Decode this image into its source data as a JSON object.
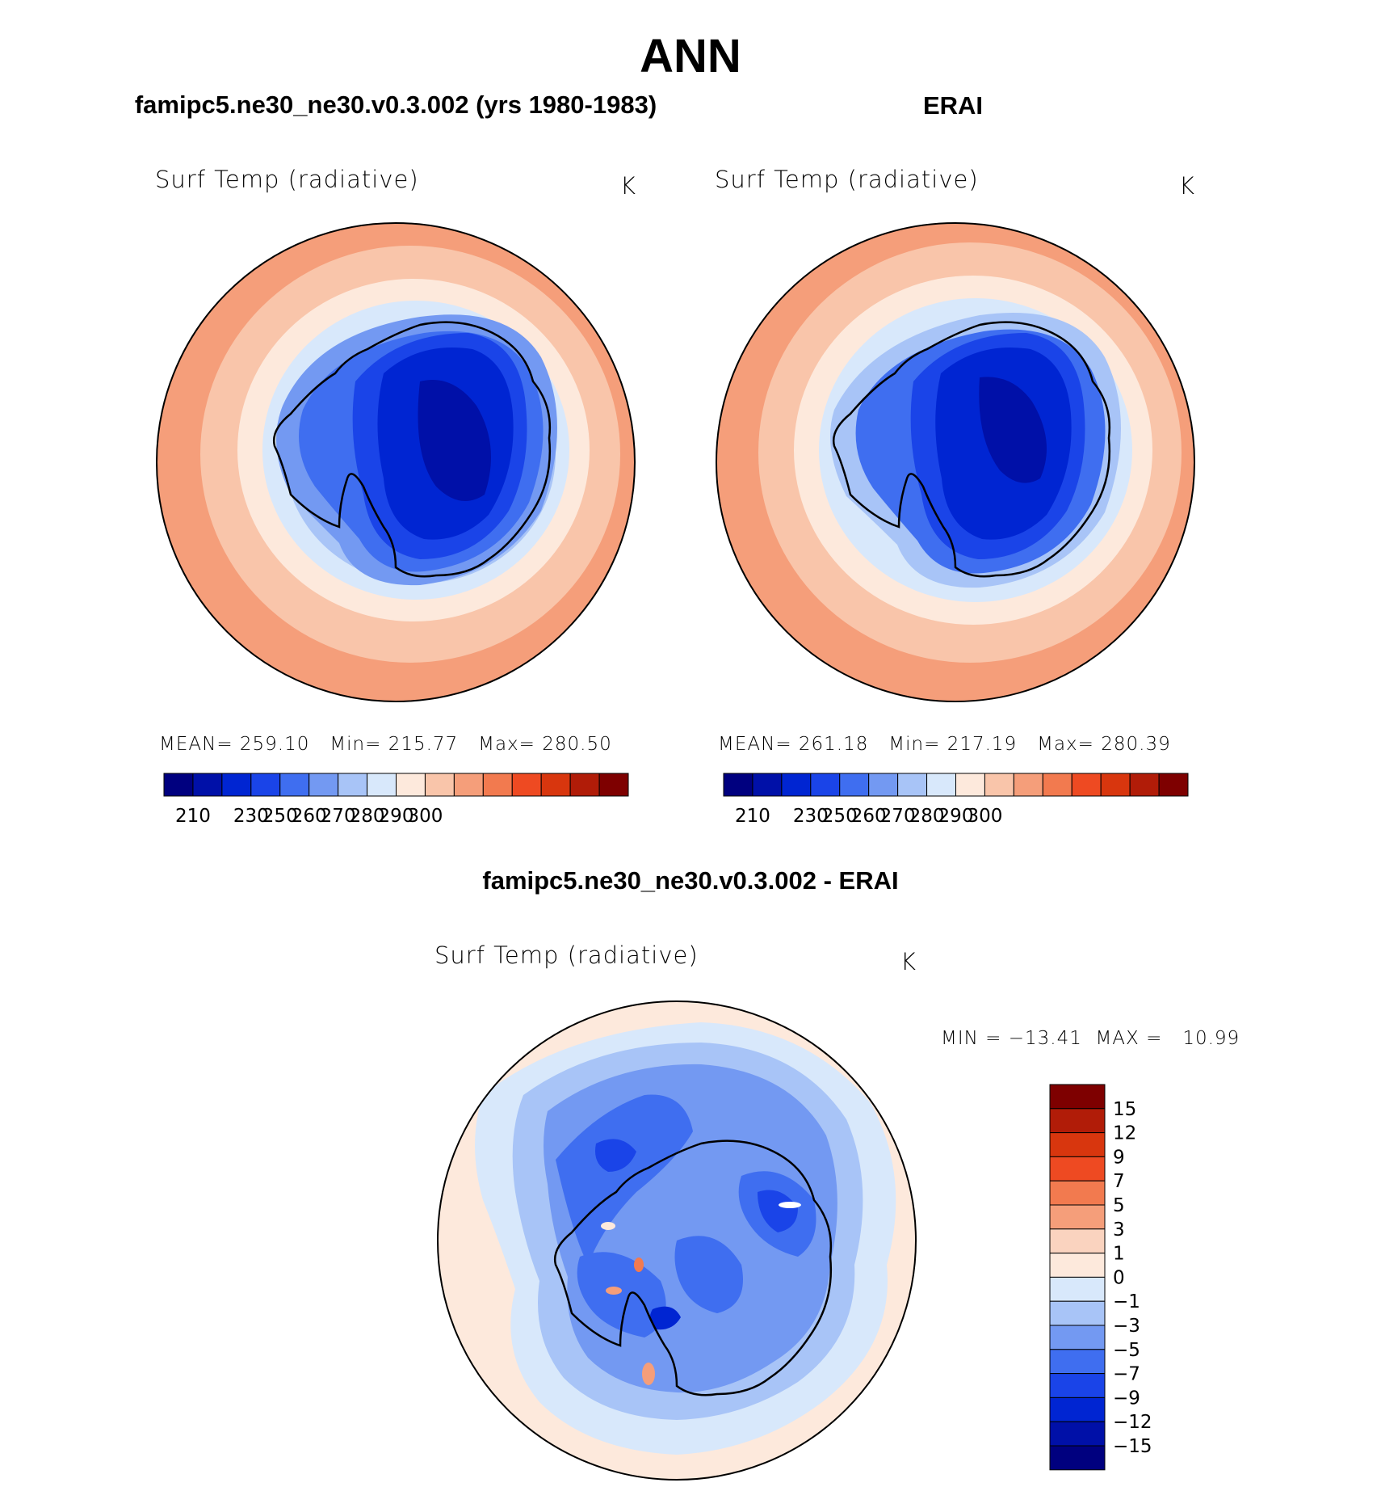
{
  "title": "ANN",
  "panels": {
    "model": {
      "heading": "famipc5.ne30_ne30.v0.3.002 (yrs 1980-1983)",
      "var_title": "Surf Temp (radiative)",
      "units": "K",
      "stats": "MEAN= 259.10   Min= 215.77   Max= 280.50"
    },
    "obs": {
      "heading": "ERAI",
      "var_title": "Surf Temp (radiative)",
      "units": "K",
      "stats": "MEAN= 261.18   Min= 217.19   Max= 280.39"
    },
    "diff": {
      "heading": "famipc5.ne30_ne30.v0.3.002 - ERAI",
      "var_title": "Surf Temp (radiative)",
      "units": "K",
      "stats": "MIN = −13.41  MAX =   10.99"
    }
  },
  "abs_colorbar": {
    "colors": [
      "#00007f",
      "#0010a8",
      "#0025d2",
      "#1a44e8",
      "#3f6ef0",
      "#7399f2",
      "#a8c4f7",
      "#d8e8fb",
      "#fde9dc",
      "#f9c5aa",
      "#f59e7a",
      "#f27a4f",
      "#ee4a22",
      "#d8360e",
      "#b11c08",
      "#7e0000"
    ],
    "tick_labels": [
      "210",
      "230",
      "250",
      "260",
      "270",
      "280",
      "290",
      "300"
    ]
  },
  "diff_colorbar": {
    "colors": [
      "#7e0000",
      "#b11c08",
      "#d8360e",
      "#ee4a22",
      "#f27a4f",
      "#f59e7a",
      "#fad3bf",
      "#fde9dc",
      "#d8e8fb",
      "#a8c4f7",
      "#7399f2",
      "#3f6ef0",
      "#1a44e8",
      "#0025d2",
      "#0010a8",
      "#00007f"
    ],
    "tick_labels": [
      "15",
      "12",
      "9",
      "7",
      "5",
      "3",
      "1",
      "0",
      "−1",
      "−3",
      "−5",
      "−7",
      "−9",
      "−12",
      "−15"
    ]
  }
}
